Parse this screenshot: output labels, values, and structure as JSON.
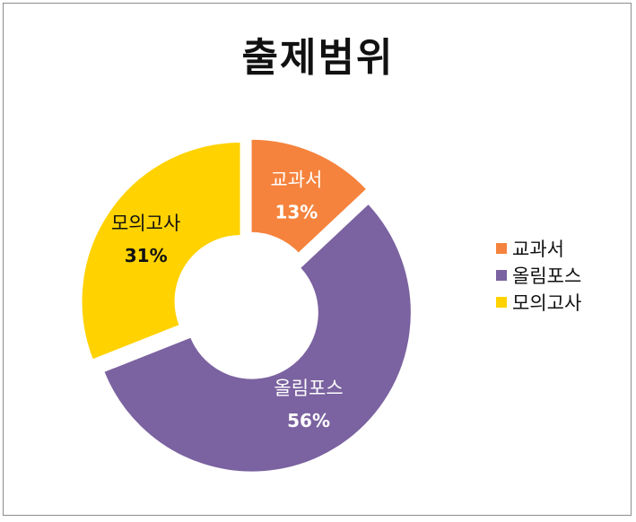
{
  "chart_data": {
    "type": "pie",
    "title": "출제범위",
    "categories": [
      "교과서",
      "올림포스",
      "모의고사"
    ],
    "values": [
      13,
      56,
      31
    ],
    "value_labels": [
      "13%",
      "56%",
      "31%"
    ],
    "colors": [
      "#f5833d",
      "#7b62a0",
      "#ffd200"
    ],
    "label_colors": [
      "#ffffff",
      "#ffffff",
      "#111111"
    ],
    "legend_position": "right",
    "donut": true
  }
}
